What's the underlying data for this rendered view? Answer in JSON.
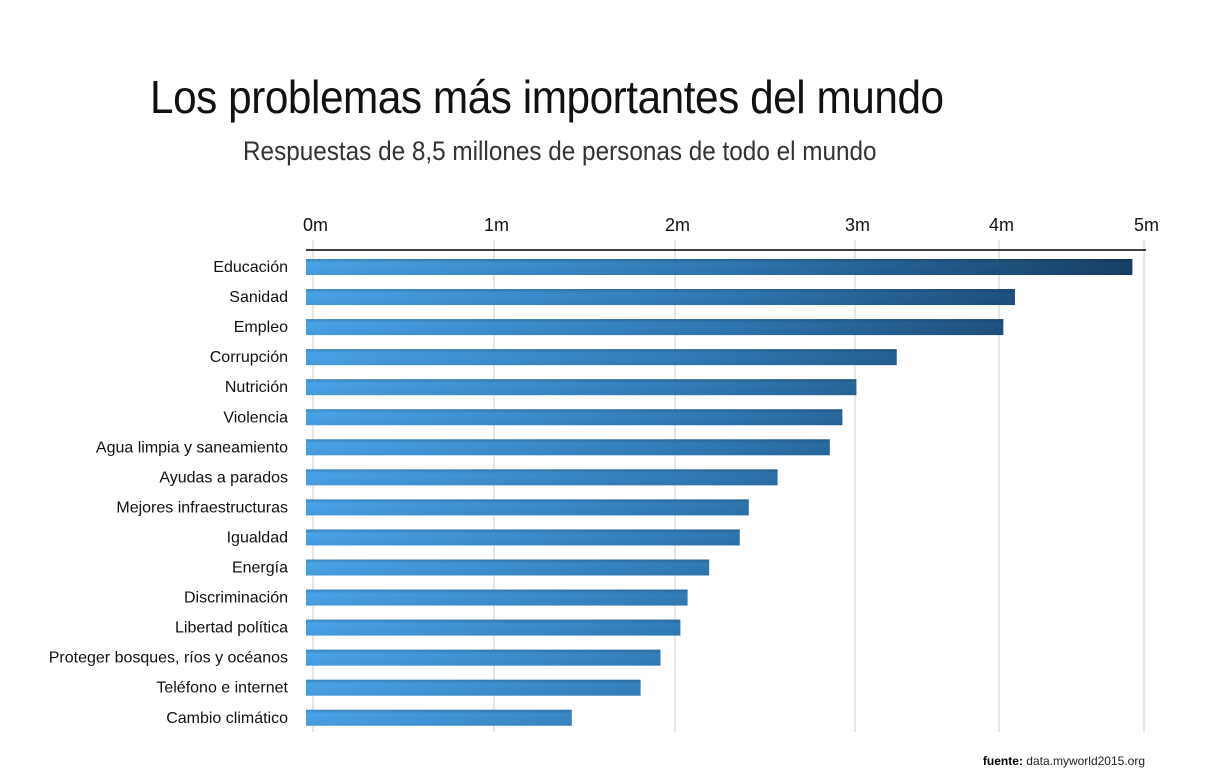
{
  "chart_data": {
    "type": "bar",
    "orientation": "horizontal",
    "title": "Los problemas más importantes del mundo",
    "subtitle": "Respuestas de 8,5 millones de personas de todo el mundo",
    "xlabel": "",
    "ylabel": "",
    "x_ticks": [
      "0m",
      "1m",
      "2m",
      "3m",
      "4m",
      "5m"
    ],
    "x_tick_values": [
      0,
      1,
      2,
      3,
      4,
      5
    ],
    "xlim": [
      0,
      5
    ],
    "unit": "millones",
    "grid": true,
    "axis_position": "top",
    "categories": [
      "Educación",
      "Sanidad",
      "Empleo",
      "Corrupción",
      "Nutrición",
      "Violencia",
      "Agua limpia y saneamiento",
      "Ayudas a parados",
      "Mejores infraestructuras",
      "Igualdad",
      "Energía",
      "Discriminación",
      "Libertad política",
      "Proteger bosques, ríos y océanos",
      "Teléfono e internet",
      "Cambio climático"
    ],
    "values": [
      4.92,
      4.11,
      4.03,
      3.29,
      3.01,
      2.93,
      2.86,
      2.57,
      2.41,
      2.36,
      2.19,
      2.07,
      2.03,
      1.92,
      1.81,
      1.43
    ],
    "colors": {
      "bar_start": "#4aa3e8",
      "bar_end": "#173f66",
      "grid": "#cccccc",
      "axis": "#000000"
    }
  },
  "source": {
    "label": "fuente:",
    "value": "data.myworld2015.org"
  }
}
